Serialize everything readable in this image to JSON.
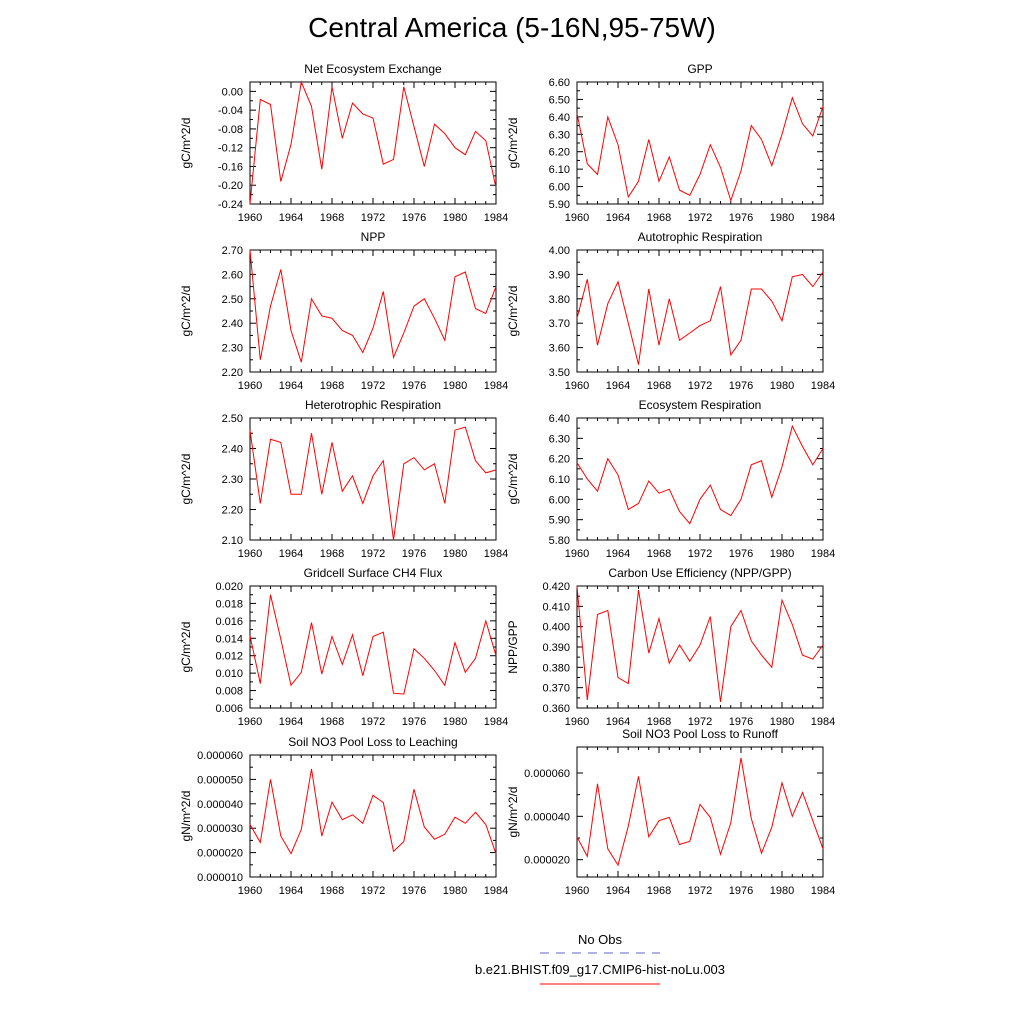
{
  "page": {
    "title": "Central America (5-16N,95-75W)"
  },
  "legend": {
    "entries": [
      {
        "label": "No Obs",
        "color": "#6666cc",
        "style": "dashed"
      },
      {
        "label": "b.e21.BHIST.f09_g17.CMIP6-hist-noLu.003",
        "color": "#ff0000",
        "style": "solid"
      }
    ]
  },
  "chart_data": [
    {
      "type": "line",
      "title": "Net Ecosystem Exchange",
      "ylabel": "gC/m^2/d",
      "xlim": [
        1960,
        1984
      ],
      "ylim": [
        -0.24,
        0.02
      ],
      "xticks": [
        1960,
        1964,
        1968,
        1972,
        1976,
        1980,
        1984
      ],
      "yticks": [
        -0.24,
        -0.2,
        -0.16,
        -0.12,
        -0.08,
        -0.04,
        0.0
      ],
      "ytick_labels": [
        "-0.24",
        "-0.20",
        "-0.16",
        "-0.12",
        "-0.08",
        "-0.04",
        "0.00"
      ],
      "series": [
        {
          "color": "#ff0000",
          "x": [
            1960,
            1961,
            1962,
            1963,
            1964,
            1965,
            1966,
            1967,
            1968,
            1969,
            1970,
            1971,
            1972,
            1973,
            1974,
            1975,
            1976,
            1977,
            1978,
            1979,
            1980,
            1981,
            1982,
            1983,
            1984
          ],
          "values": [
            -0.24,
            -0.017,
            -0.028,
            -0.192,
            -0.113,
            0.02,
            -0.032,
            -0.166,
            0.01,
            -0.1,
            -0.025,
            -0.048,
            -0.057,
            -0.155,
            -0.145,
            0.01,
            -0.075,
            -0.16,
            -0.07,
            -0.09,
            -0.12,
            -0.135,
            -0.085,
            -0.105,
            -0.205
          ]
        }
      ]
    },
    {
      "type": "line",
      "title": "GPP",
      "ylabel": "gC/m^2/d",
      "xlim": [
        1960,
        1984
      ],
      "ylim": [
        5.9,
        6.6
      ],
      "xticks": [
        1960,
        1964,
        1968,
        1972,
        1976,
        1980,
        1984
      ],
      "yticks": [
        5.9,
        6.0,
        6.1,
        6.2,
        6.3,
        6.4,
        6.5,
        6.6
      ],
      "ytick_labels": [
        "5.90",
        "6.00",
        "6.10",
        "6.20",
        "6.30",
        "6.40",
        "6.50",
        "6.60"
      ],
      "series": [
        {
          "color": "#ff0000",
          "x": [
            1960,
            1961,
            1962,
            1963,
            1964,
            1965,
            1966,
            1967,
            1968,
            1969,
            1970,
            1971,
            1972,
            1973,
            1974,
            1975,
            1976,
            1977,
            1978,
            1979,
            1980,
            1981,
            1982,
            1983,
            1984
          ],
          "values": [
            6.42,
            6.13,
            6.07,
            6.4,
            6.24,
            5.94,
            6.03,
            6.27,
            6.03,
            6.17,
            5.98,
            5.95,
            6.07,
            6.24,
            6.11,
            5.92,
            6.09,
            6.35,
            6.27,
            6.12,
            6.3,
            6.51,
            6.36,
            6.29,
            6.46
          ]
        }
      ]
    },
    {
      "type": "line",
      "title": "NPP",
      "ylabel": "gC/m^2/d",
      "xlim": [
        1960,
        1984
      ],
      "ylim": [
        2.2,
        2.7
      ],
      "xticks": [
        1960,
        1964,
        1968,
        1972,
        1976,
        1980,
        1984
      ],
      "yticks": [
        2.2,
        2.3,
        2.4,
        2.5,
        2.6,
        2.7
      ],
      "ytick_labels": [
        "2.20",
        "2.30",
        "2.40",
        "2.50",
        "2.60",
        "2.70"
      ],
      "series": [
        {
          "color": "#ff0000",
          "x": [
            1960,
            1961,
            1962,
            1963,
            1964,
            1965,
            1966,
            1967,
            1968,
            1969,
            1970,
            1971,
            1972,
            1973,
            1974,
            1975,
            1976,
            1977,
            1978,
            1979,
            1980,
            1981,
            1982,
            1983,
            1984
          ],
          "values": [
            2.7,
            2.25,
            2.47,
            2.62,
            2.37,
            2.24,
            2.5,
            2.43,
            2.42,
            2.37,
            2.35,
            2.28,
            2.38,
            2.53,
            2.26,
            2.36,
            2.47,
            2.5,
            2.42,
            2.33,
            2.59,
            2.61,
            2.46,
            2.44,
            2.55
          ]
        }
      ]
    },
    {
      "type": "line",
      "title": "Autotrophic Respiration",
      "ylabel": "gC/m^2/d",
      "xlim": [
        1960,
        1984
      ],
      "ylim": [
        3.5,
        4.0
      ],
      "xticks": [
        1960,
        1964,
        1968,
        1972,
        1976,
        1980,
        1984
      ],
      "yticks": [
        3.5,
        3.6,
        3.7,
        3.8,
        3.9,
        4.0
      ],
      "ytick_labels": [
        "3.50",
        "3.60",
        "3.70",
        "3.80",
        "3.90",
        "4.00"
      ],
      "series": [
        {
          "color": "#ff0000",
          "x": [
            1960,
            1961,
            1962,
            1963,
            1964,
            1965,
            1966,
            1967,
            1968,
            1969,
            1970,
            1971,
            1972,
            1973,
            1974,
            1975,
            1976,
            1977,
            1978,
            1979,
            1980,
            1981,
            1982,
            1983,
            1984
          ],
          "values": [
            3.72,
            3.88,
            3.61,
            3.78,
            3.87,
            3.7,
            3.53,
            3.84,
            3.61,
            3.8,
            3.63,
            3.66,
            3.69,
            3.71,
            3.85,
            3.57,
            3.63,
            3.84,
            3.84,
            3.79,
            3.71,
            3.89,
            3.9,
            3.85,
            3.91
          ]
        }
      ]
    },
    {
      "type": "line",
      "title": "Heterotrophic Respiration",
      "ylabel": "gC/m^2/d",
      "xlim": [
        1960,
        1984
      ],
      "ylim": [
        2.1,
        2.5
      ],
      "xticks": [
        1960,
        1964,
        1968,
        1972,
        1976,
        1980,
        1984
      ],
      "yticks": [
        2.1,
        2.2,
        2.3,
        2.4,
        2.5
      ],
      "ytick_labels": [
        "2.10",
        "2.20",
        "2.30",
        "2.40",
        "2.50"
      ],
      "series": [
        {
          "color": "#ff0000",
          "x": [
            1960,
            1961,
            1962,
            1963,
            1964,
            1965,
            1966,
            1967,
            1968,
            1969,
            1970,
            1971,
            1972,
            1973,
            1974,
            1975,
            1976,
            1977,
            1978,
            1979,
            1980,
            1981,
            1982,
            1983,
            1984
          ],
          "values": [
            2.46,
            2.22,
            2.43,
            2.42,
            2.25,
            2.25,
            2.45,
            2.25,
            2.42,
            2.26,
            2.31,
            2.22,
            2.31,
            2.36,
            2.1,
            2.35,
            2.37,
            2.33,
            2.35,
            2.22,
            2.46,
            2.47,
            2.36,
            2.32,
            2.33
          ]
        }
      ]
    },
    {
      "type": "line",
      "title": "Ecosystem Respiration",
      "ylabel": "gC/m^2/d",
      "xlim": [
        1960,
        1984
      ],
      "ylim": [
        5.8,
        6.4
      ],
      "xticks": [
        1960,
        1964,
        1968,
        1972,
        1976,
        1980,
        1984
      ],
      "yticks": [
        5.8,
        5.9,
        6.0,
        6.1,
        6.2,
        6.3,
        6.4
      ],
      "ytick_labels": [
        "5.80",
        "5.90",
        "6.00",
        "6.10",
        "6.20",
        "6.30",
        "6.40"
      ],
      "series": [
        {
          "color": "#ff0000",
          "x": [
            1960,
            1961,
            1962,
            1963,
            1964,
            1965,
            1966,
            1967,
            1968,
            1969,
            1970,
            1971,
            1972,
            1973,
            1974,
            1975,
            1976,
            1977,
            1978,
            1979,
            1980,
            1981,
            1982,
            1983,
            1984
          ],
          "values": [
            6.18,
            6.1,
            6.04,
            6.2,
            6.12,
            5.95,
            5.98,
            6.09,
            6.03,
            6.05,
            5.94,
            5.88,
            6.0,
            6.07,
            5.95,
            5.92,
            6.0,
            6.17,
            6.19,
            6.01,
            6.16,
            6.36,
            6.26,
            6.17,
            6.25
          ]
        }
      ]
    },
    {
      "type": "line",
      "title": "Gridcell Surface CH4 Flux",
      "ylabel": "gC/m^2/d",
      "xlim": [
        1960,
        1984
      ],
      "ylim": [
        0.006,
        0.02
      ],
      "xticks": [
        1960,
        1964,
        1968,
        1972,
        1976,
        1980,
        1984
      ],
      "yticks": [
        0.006,
        0.008,
        0.01,
        0.012,
        0.014,
        0.016,
        0.018,
        0.02
      ],
      "ytick_labels": [
        "0.006",
        "0.008",
        "0.010",
        "0.012",
        "0.014",
        "0.016",
        "0.018",
        "0.020"
      ],
      "series": [
        {
          "color": "#ff0000",
          "x": [
            1960,
            1961,
            1962,
            1963,
            1964,
            1965,
            1966,
            1967,
            1968,
            1969,
            1970,
            1971,
            1972,
            1973,
            1974,
            1975,
            1976,
            1977,
            1978,
            1979,
            1980,
            1981,
            1982,
            1983,
            1984
          ],
          "values": [
            0.0143,
            0.0088,
            0.019,
            0.0139,
            0.0086,
            0.0101,
            0.0158,
            0.0099,
            0.0142,
            0.011,
            0.0144,
            0.0097,
            0.0142,
            0.0147,
            0.0077,
            0.0076,
            0.0128,
            0.0117,
            0.0103,
            0.0086,
            0.0135,
            0.0101,
            0.0117,
            0.016,
            0.012
          ]
        }
      ]
    },
    {
      "type": "line",
      "title": "Carbon Use Efficiency (NPP/GPP)",
      "ylabel": "NPP/GPP",
      "xlim": [
        1960,
        1984
      ],
      "ylim": [
        0.36,
        0.42
      ],
      "xticks": [
        1960,
        1964,
        1968,
        1972,
        1976,
        1980,
        1984
      ],
      "yticks": [
        0.36,
        0.37,
        0.38,
        0.39,
        0.4,
        0.41,
        0.42
      ],
      "ytick_labels": [
        "0.360",
        "0.370",
        "0.380",
        "0.390",
        "0.400",
        "0.410",
        "0.420"
      ],
      "series": [
        {
          "color": "#ff0000",
          "x": [
            1960,
            1961,
            1962,
            1963,
            1964,
            1965,
            1966,
            1967,
            1968,
            1969,
            1970,
            1971,
            1972,
            1973,
            1974,
            1975,
            1976,
            1977,
            1978,
            1979,
            1980,
            1981,
            1982,
            1983,
            1984
          ],
          "values": [
            0.42,
            0.364,
            0.406,
            0.408,
            0.375,
            0.372,
            0.418,
            0.387,
            0.404,
            0.382,
            0.391,
            0.383,
            0.391,
            0.405,
            0.363,
            0.4,
            0.408,
            0.393,
            0.386,
            0.38,
            0.413,
            0.401,
            0.386,
            0.384,
            0.391
          ]
        }
      ]
    },
    {
      "type": "line",
      "title": "Soil NO3 Pool Loss to Leaching",
      "ylabel": "gN/m^2/d",
      "xlim": [
        1960,
        1984
      ],
      "ylim": [
        1e-05,
        6e-05
      ],
      "xticks": [
        1960,
        1964,
        1968,
        1972,
        1976,
        1980,
        1984
      ],
      "yticks": [
        1e-05,
        2e-05,
        3e-05,
        4e-05,
        5e-05,
        6e-05
      ],
      "ytick_labels": [
        "0.000010",
        "0.000020",
        "0.000030",
        "0.000040",
        "0.000050",
        "0.000060"
      ],
      "series": [
        {
          "color": "#ff0000",
          "x": [
            1960,
            1961,
            1962,
            1963,
            1964,
            1965,
            1966,
            1967,
            1968,
            1969,
            1970,
            1971,
            1972,
            1973,
            1974,
            1975,
            1976,
            1977,
            1978,
            1979,
            1980,
            1981,
            1982,
            1983,
            1984
          ],
          "values": [
            3.15e-05,
            2.42e-05,
            5e-05,
            2.68e-05,
            1.96e-05,
            2.95e-05,
            5.43e-05,
            2.68e-05,
            4.07e-05,
            3.35e-05,
            3.55e-05,
            3.2e-05,
            4.35e-05,
            4.05e-05,
            2.05e-05,
            2.45e-05,
            4.6e-05,
            3.05e-05,
            2.55e-05,
            2.75e-05,
            3.45e-05,
            3.2e-05,
            3.65e-05,
            3.15e-05,
            1.95e-05
          ]
        }
      ]
    },
    {
      "type": "line",
      "title": "Soil NO3 Pool Loss to Runoff",
      "ylabel": "gN/m^2/d",
      "xlim": [
        1960,
        1984
      ],
      "ylim": [
        1.2e-05,
        7.2e-05
      ],
      "xticks": [
        1960,
        1964,
        1968,
        1972,
        1976,
        1980,
        1984
      ],
      "yticks": [
        2e-05,
        4e-05,
        6e-05
      ],
      "ytick_labels": [
        "0.000020",
        "0.000040",
        "0.000060"
      ],
      "series": [
        {
          "color": "#ff0000",
          "x": [
            1960,
            1961,
            1962,
            1963,
            1964,
            1965,
            1966,
            1967,
            1968,
            1969,
            1970,
            1971,
            1972,
            1973,
            1974,
            1975,
            1976,
            1977,
            1978,
            1979,
            1980,
            1981,
            1982,
            1983,
            1984
          ],
          "values": [
            3.05e-05,
            2.15e-05,
            5.5e-05,
            2.5e-05,
            1.75e-05,
            3.55e-05,
            5.85e-05,
            3.05e-05,
            3.8e-05,
            3.95e-05,
            2.7e-05,
            2.85e-05,
            4.55e-05,
            3.95e-05,
            2.25e-05,
            3.7e-05,
            6.7e-05,
            3.9e-05,
            2.3e-05,
            3.5e-05,
            5.55e-05,
            4e-05,
            5.1e-05,
            3.8e-05,
            2.5e-05
          ]
        }
      ]
    }
  ]
}
